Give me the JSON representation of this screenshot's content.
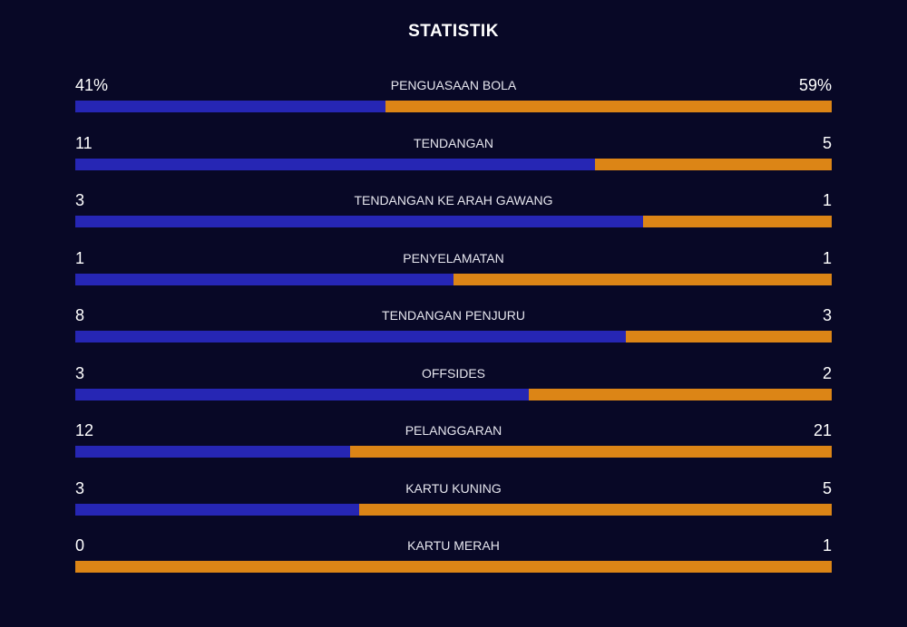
{
  "title": "STATISTIK",
  "colors": {
    "home": "#2626b4",
    "away": "#dc8516",
    "background": "#080826"
  },
  "stats": [
    {
      "label": "PENGUASAAN BOLA",
      "home": "41%",
      "away": "59%",
      "home_share": 0.41
    },
    {
      "label": "TENDANGAN",
      "home": "11",
      "away": "5",
      "home_share": 0.6875
    },
    {
      "label": "TENDANGAN KE ARAH GAWANG",
      "home": "3",
      "away": "1",
      "home_share": 0.75
    },
    {
      "label": "PENYELAMATAN",
      "home": "1",
      "away": "1",
      "home_share": 0.5
    },
    {
      "label": "TENDANGAN PENJURU",
      "home": "8",
      "away": "3",
      "home_share": 0.7273
    },
    {
      "label": "OFFSIDES",
      "home": "3",
      "away": "2",
      "home_share": 0.6
    },
    {
      "label": "PELANGGARAN",
      "home": "12",
      "away": "21",
      "home_share": 0.3636
    },
    {
      "label": "KARTU KUNING",
      "home": "3",
      "away": "5",
      "home_share": 0.375
    },
    {
      "label": "KARTU MERAH",
      "home": "0",
      "away": "1",
      "home_share": 0
    }
  ]
}
